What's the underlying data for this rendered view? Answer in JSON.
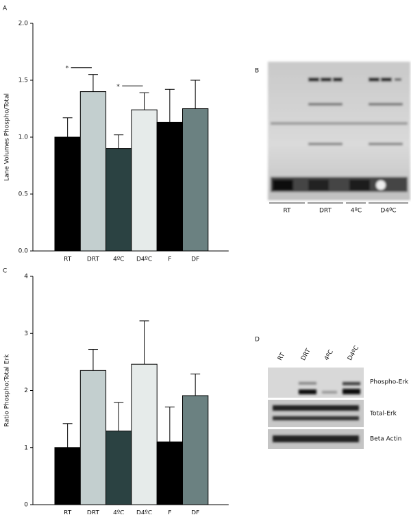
{
  "chart_data": [
    {
      "type": "bar",
      "panel": "A",
      "ylabel": "Lane Volumes Phospho/Total",
      "categories": [
        "RT",
        "DRT",
        "4ºC",
        "D4ºC",
        "F",
        "DF"
      ],
      "values": [
        1.0,
        1.4,
        0.9,
        1.24,
        1.13,
        1.25
      ],
      "errors": [
        0.17,
        0.15,
        0.12,
        0.15,
        0.29,
        0.25
      ],
      "colors": [
        "#000000",
        "#c3cfcf",
        "#2b4242",
        "#e6ebea",
        "#000000",
        "#6b8181"
      ],
      "ylim": [
        0,
        2
      ],
      "yticks": [
        {
          "value": 0,
          "label": "0.0"
        },
        {
          "value": 0.5,
          "label": "0.5"
        },
        {
          "value": 1,
          "label": "1.0"
        },
        {
          "value": 1.5,
          "label": "1.5"
        },
        {
          "value": 2,
          "label": "2.0"
        }
      ],
      "annotations": [
        "*",
        "*"
      ]
    },
    {
      "type": "bar",
      "panel": "C",
      "ylabel": "Ratio Phospho:Total Erk",
      "categories": [
        "RT",
        "DRT",
        "4ºC",
        "D4ºC",
        "F",
        "DF"
      ],
      "values": [
        1.0,
        2.35,
        1.29,
        2.46,
        1.1,
        1.91
      ],
      "errors": [
        0.42,
        0.37,
        0.5,
        0.76,
        0.61,
        0.38
      ],
      "colors": [
        "#000000",
        "#c3cfcf",
        "#2b4242",
        "#e6ebea",
        "#000000",
        "#6b8181"
      ],
      "ylim": [
        0,
        4
      ],
      "yticks": [
        0,
        1,
        2,
        3,
        4
      ]
    }
  ],
  "blots": [
    {
      "panel": "B",
      "lanes": [
        "RT",
        "DRT",
        "4ºC",
        "D4ºC"
      ]
    },
    {
      "panel": "D",
      "lanes": [
        "RT",
        "DRT",
        "4ºC",
        "D4ºC"
      ],
      "rows": [
        "Phospho-Erk",
        "Total-Erk",
        "Beta Actin"
      ]
    }
  ]
}
